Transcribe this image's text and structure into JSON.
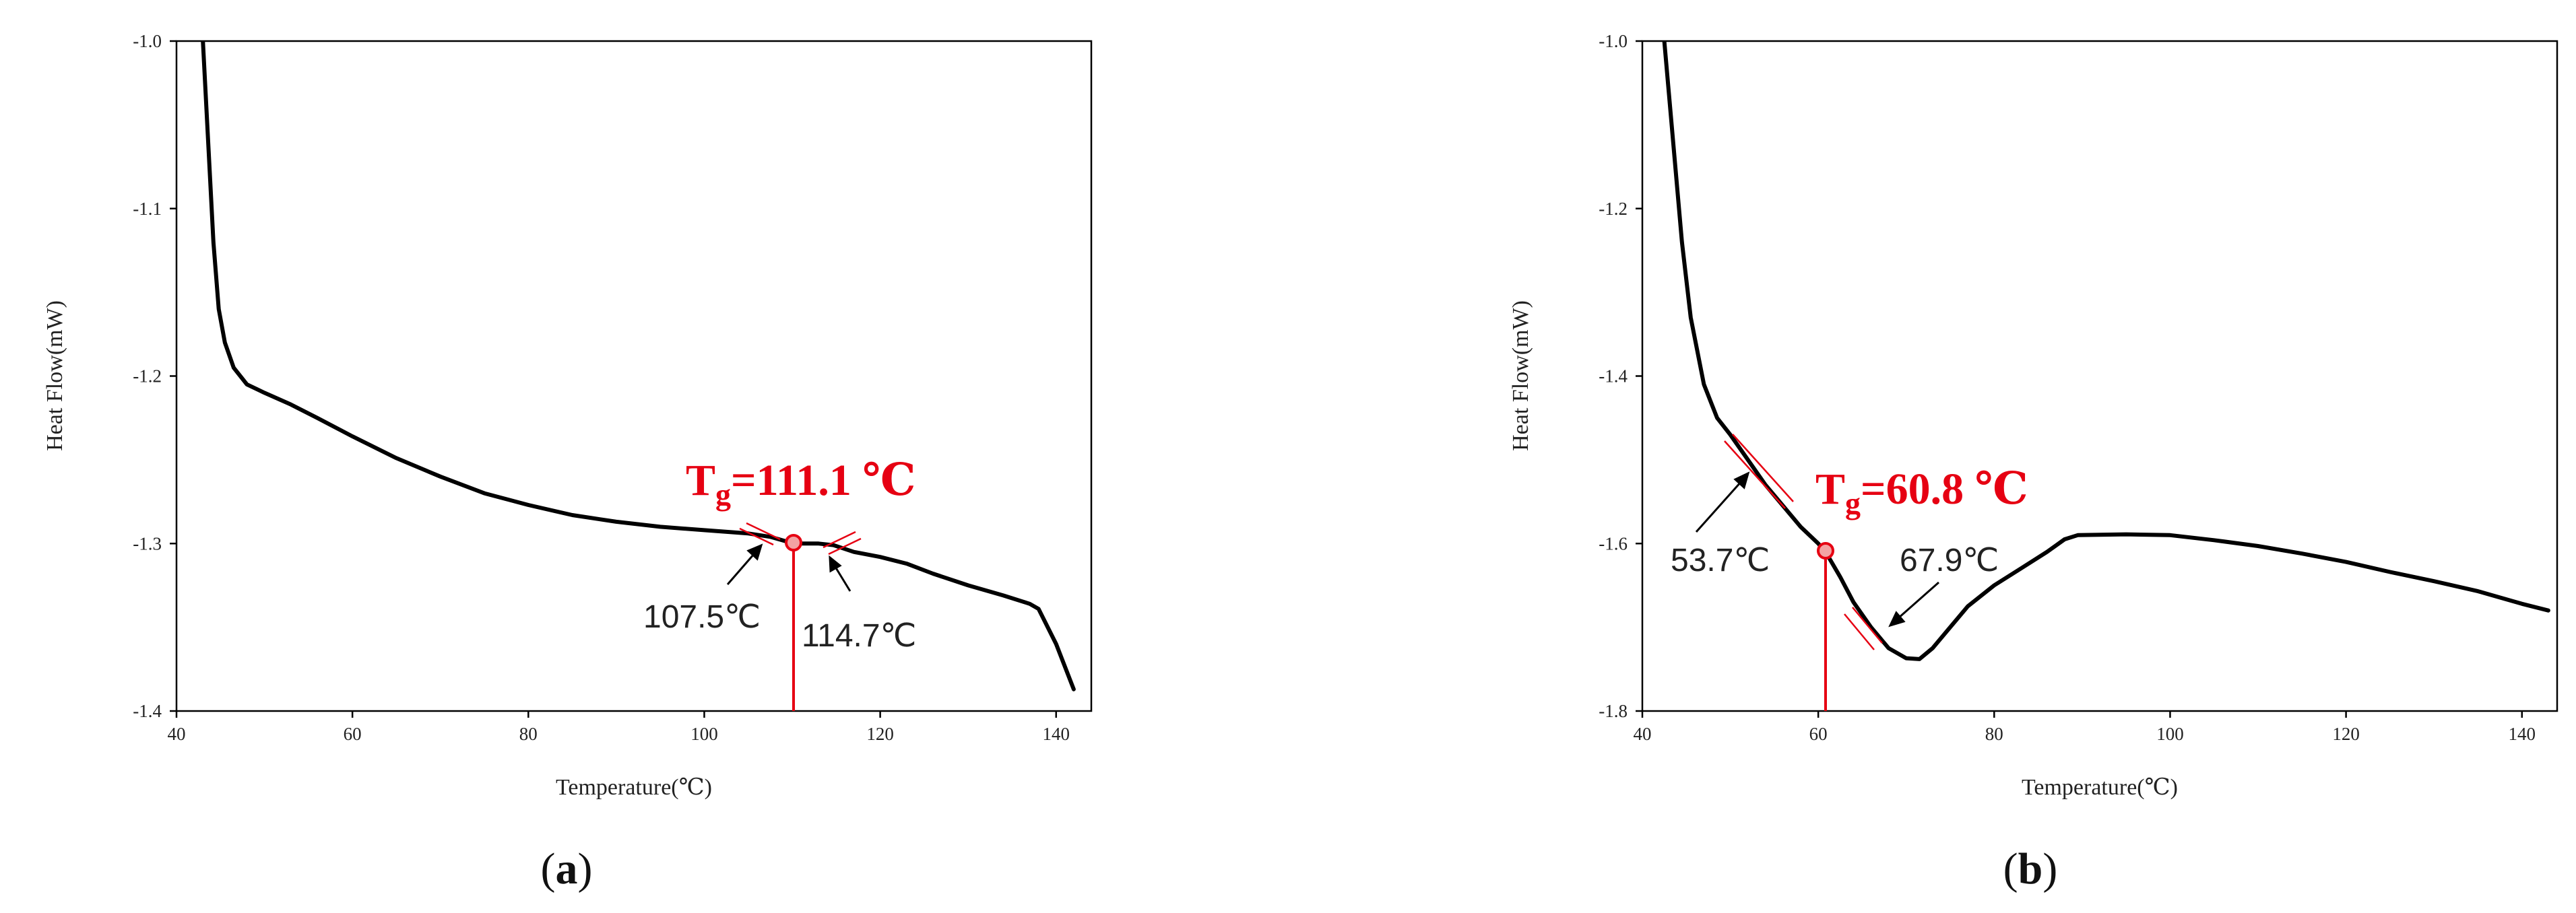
{
  "accent_color": "#e60012",
  "chart_data": [
    {
      "type": "line",
      "panel_label": "a",
      "xlabel": "Temperature(℃)",
      "ylabel": "Heat Flow(mW)",
      "xlim": [
        40,
        144
      ],
      "ylim": [
        -1.4,
        -1.0
      ],
      "xticks": [
        40,
        60,
        80,
        100,
        120,
        140
      ],
      "yticks": [
        -1.0,
        -1.1,
        -1.2,
        -1.3,
        -1.4
      ],
      "ytick_labels": [
        "-1.0",
        "-1.1",
        "-1.2",
        "-1.3",
        "-1.4"
      ],
      "grid": false,
      "x": [
        43.0,
        43.6,
        44.2,
        44.8,
        45.5,
        46.5,
        48.0,
        50.0,
        53.0,
        56.0,
        60.0,
        65.0,
        70.0,
        75.0,
        80.0,
        85.0,
        90.0,
        95.0,
        100.0,
        105.0,
        107.5,
        109.5,
        111.1,
        113.0,
        114.7,
        117.0,
        120.0,
        123.0,
        126.0,
        130.0,
        134.0,
        137.0,
        138.0,
        140.0,
        142.0
      ],
      "y": [
        -1.0,
        -1.06,
        -1.12,
        -1.16,
        -1.18,
        -1.195,
        -1.205,
        -1.21,
        -1.217,
        -1.225,
        -1.236,
        -1.249,
        -1.26,
        -1.27,
        -1.277,
        -1.283,
        -1.287,
        -1.29,
        -1.292,
        -1.294,
        -1.296,
        -1.299,
        -1.3,
        -1.3,
        -1.301,
        -1.305,
        -1.308,
        -1.312,
        -1.318,
        -1.325,
        -1.331,
        -1.336,
        -1.339,
        -1.36,
        -1.387
      ],
      "tg_label": {
        "main": "T",
        "sub": "g",
        "rest": "=111.1 ℃"
      },
      "tg_x": 111.1,
      "annotations": [
        {
          "text": "107.5℃",
          "x": 107.5
        },
        {
          "text": "114.7℃",
          "x": 114.7
        }
      ]
    },
    {
      "type": "line",
      "panel_label": "b",
      "xlabel": "Temperature(℃)",
      "ylabel": "Heat Flow(mW)",
      "xlim": [
        40,
        144
      ],
      "ylim": [
        -1.8,
        -1.0
      ],
      "xticks": [
        40,
        60,
        80,
        100,
        120,
        140
      ],
      "yticks": [
        -1.0,
        -1.2,
        -1.4,
        -1.6,
        -1.8
      ],
      "ytick_labels": [
        "-1.0",
        "-1.2",
        "-1.4",
        "-1.6",
        "-1.8"
      ],
      "grid": false,
      "x": [
        42.5,
        43.5,
        44.5,
        45.5,
        47.0,
        48.5,
        50.0,
        52.0,
        54.0,
        56.0,
        58.0,
        60.0,
        61.0,
        62.5,
        64.0,
        66.0,
        68.0,
        70.0,
        71.5,
        73.0,
        75.0,
        77.0,
        80.0,
        83.0,
        86.0,
        88.0,
        89.5,
        95.0,
        100.0,
        105.0,
        110.0,
        115.0,
        120.0,
        125.0,
        130.0,
        135.0,
        140.0,
        143.0
      ],
      "y": [
        -1.0,
        -1.12,
        -1.24,
        -1.33,
        -1.41,
        -1.45,
        -1.47,
        -1.5,
        -1.53,
        -1.555,
        -1.58,
        -1.6,
        -1.613,
        -1.64,
        -1.67,
        -1.7,
        -1.725,
        -1.737,
        -1.738,
        -1.725,
        -1.7,
        -1.675,
        -1.65,
        -1.63,
        -1.61,
        -1.595,
        -1.59,
        -1.589,
        -1.59,
        -1.596,
        -1.603,
        -1.612,
        -1.622,
        -1.634,
        -1.645,
        -1.657,
        -1.672,
        -1.68
      ],
      "tg_label": {
        "main": "T",
        "sub": "g",
        "rest": "=60.8 ℃"
      },
      "tg_x": 60.8,
      "annotations": [
        {
          "text": "53.7℃",
          "x": 53.7
        },
        {
          "text": "67.9℃",
          "x": 67.9
        }
      ]
    }
  ]
}
